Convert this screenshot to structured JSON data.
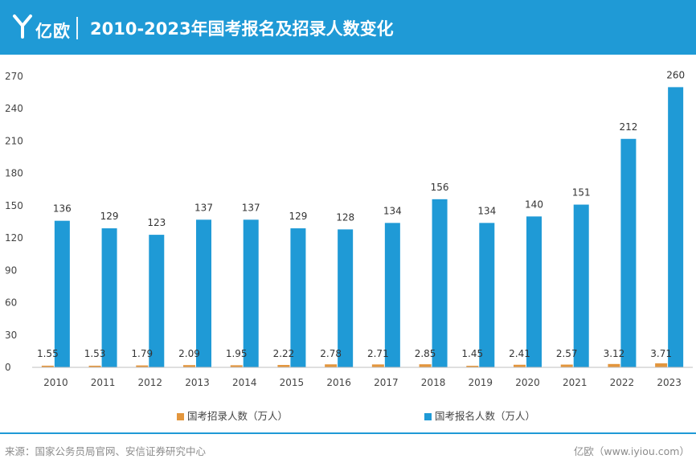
{
  "header": {
    "brand_name": "亿欧",
    "title": "2010-2023年国考报名及招录人数变化"
  },
  "colors": {
    "header_bg": "#1f9ad6",
    "register": "#1f9ad6",
    "recruit": "#e3963d"
  },
  "chart_data": {
    "type": "bar",
    "title": "2010-2023年国考报名及招录人数变化",
    "categories": [
      "2010",
      "2011",
      "2012",
      "2013",
      "2014",
      "2015",
      "2016",
      "2017",
      "2018",
      "2019",
      "2020",
      "2021",
      "2022",
      "2023"
    ],
    "series": [
      {
        "name": "国考招录人数（万人）",
        "color": "#e3963d",
        "values": [
          1.55,
          1.53,
          1.79,
          2.09,
          1.95,
          2.22,
          2.78,
          2.71,
          2.85,
          1.45,
          2.41,
          2.57,
          3.12,
          3.71
        ]
      },
      {
        "name": "国考报名人数（万人）",
        "color": "#1f9ad6",
        "values": [
          136,
          129,
          123,
          137,
          137,
          129,
          128,
          134,
          156,
          134,
          140,
          151,
          212,
          260
        ]
      }
    ],
    "yticks": [
      "0",
      "30",
      "60",
      "90",
      "120",
      "150",
      "180",
      "210",
      "240",
      "270"
    ],
    "ylim": [
      0,
      270
    ],
    "legend_position": "bottom",
    "grid": false
  },
  "legend": {
    "recruit_label": "国考招录人数（万人）",
    "register_label": "国考报名人数（万人）"
  },
  "footer": {
    "source": "来源：国家公务员局官网、安信证券研究中心",
    "brand": "亿欧（www.iyiou.com）"
  }
}
